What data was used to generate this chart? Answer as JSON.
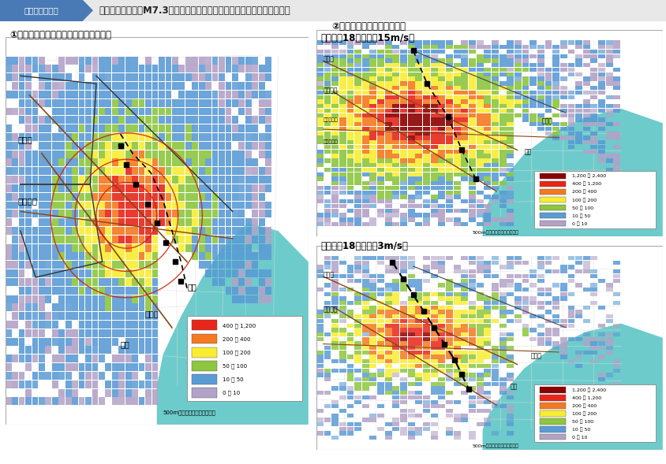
{
  "title_box_text": "図２－３－３５",
  "title_main": "東京湾北部地震（M7.3）による全壊棟数（揺れ）分布及び焼失棟数分布",
  "panel1_title": "①揺れによる全壊棟数の分布（都心部）",
  "panel2_title": "②焼失棟数の分布（都心部）",
  "panel2_subtitle": "＜冬夕方18時，風速15m/s＞",
  "panel3_subtitle": "＜冬夕方18時，風速3m/s＞",
  "caption": "500mメッシュ内における棟数",
  "legend1_labels": [
    "400 － 1,200",
    "200 － 400",
    "100 － 200",
    "50 － 100",
    "10 － 50",
    "0 － 10"
  ],
  "legend1_colors": [
    "#e8251a",
    "#f47920",
    "#f9ed32",
    "#8dc63f",
    "#5b9bd5",
    "#b3a2c7"
  ],
  "legend2_labels": [
    "1,200 － 2,400",
    "400 － 1,200",
    "200 － 400",
    "100 － 200",
    "50 － 100",
    "10 － 50",
    "0 － 10"
  ],
  "legend2_colors": [
    "#8b0000",
    "#e8251a",
    "#f47920",
    "#f9ed32",
    "#8dc63f",
    "#5b9bd5",
    "#b3a2c7"
  ],
  "bg_color": "#ffffff",
  "header_bg": "#e8e8e8",
  "title_box_bg": "#4a7ab5",
  "map_bg_land": "#f5f5f0",
  "map_bg_sea": "#6dcbcb",
  "border_color": "#cccccc"
}
